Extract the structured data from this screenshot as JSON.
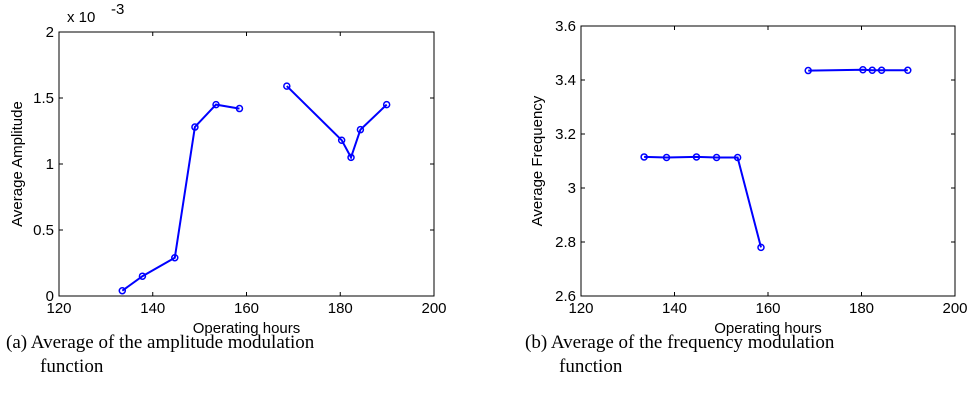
{
  "chart_data": [
    {
      "type": "line",
      "xlabel": "Operating hours",
      "ylabel": "Average Amplitude",
      "exponent_label": "x 10",
      "exponent_power": "-3",
      "xlim": [
        120,
        200
      ],
      "ylim": [
        0,
        2
      ],
      "xticks": [
        120,
        140,
        160,
        180,
        200
      ],
      "yticks": [
        0,
        0.5,
        1,
        1.5,
        2
      ],
      "ytick_labels": [
        "0",
        "0.5",
        "1",
        "1.5",
        "2"
      ],
      "color": "#0000ff",
      "segments": [
        {
          "x": [
            133.5,
            137.8,
            144.7,
            149.0,
            153.5,
            158.5
          ],
          "y": [
            0.04,
            0.15,
            0.29,
            1.28,
            1.45,
            1.42
          ]
        },
        {
          "x": [
            168.6,
            180.3,
            182.3,
            184.3,
            189.9
          ],
          "y": [
            1.59,
            1.18,
            1.05,
            1.26,
            1.45
          ]
        }
      ],
      "caption_tag": "(a)",
      "caption_line1": "Average of the amplitude modulation",
      "caption_line2": "function"
    },
    {
      "type": "line",
      "xlabel": "Operating hours",
      "ylabel": "Average Frequency",
      "xlim": [
        120,
        200
      ],
      "ylim": [
        2.6,
        3.6
      ],
      "xticks": [
        120,
        140,
        160,
        180,
        200
      ],
      "yticks": [
        2.6,
        2.8,
        3,
        3.2,
        3.4,
        3.6
      ],
      "ytick_labels": [
        "2.6",
        "2.8",
        "3",
        "3.2",
        "3.4",
        "3.6"
      ],
      "color": "#0000ff",
      "segments": [
        {
          "x": [
            133.5,
            138.3,
            144.7,
            149.0,
            153.5,
            158.5
          ],
          "y": [
            3.115,
            3.113,
            3.115,
            3.113,
            3.113,
            2.78
          ]
        },
        {
          "x": [
            168.6,
            180.3,
            182.3,
            184.3,
            189.9
          ],
          "y": [
            3.435,
            3.438,
            3.436,
            3.436,
            3.436
          ]
        }
      ],
      "caption_tag": "(b)",
      "caption_line1": "Average of the frequency modulation",
      "caption_line2": "function"
    }
  ]
}
